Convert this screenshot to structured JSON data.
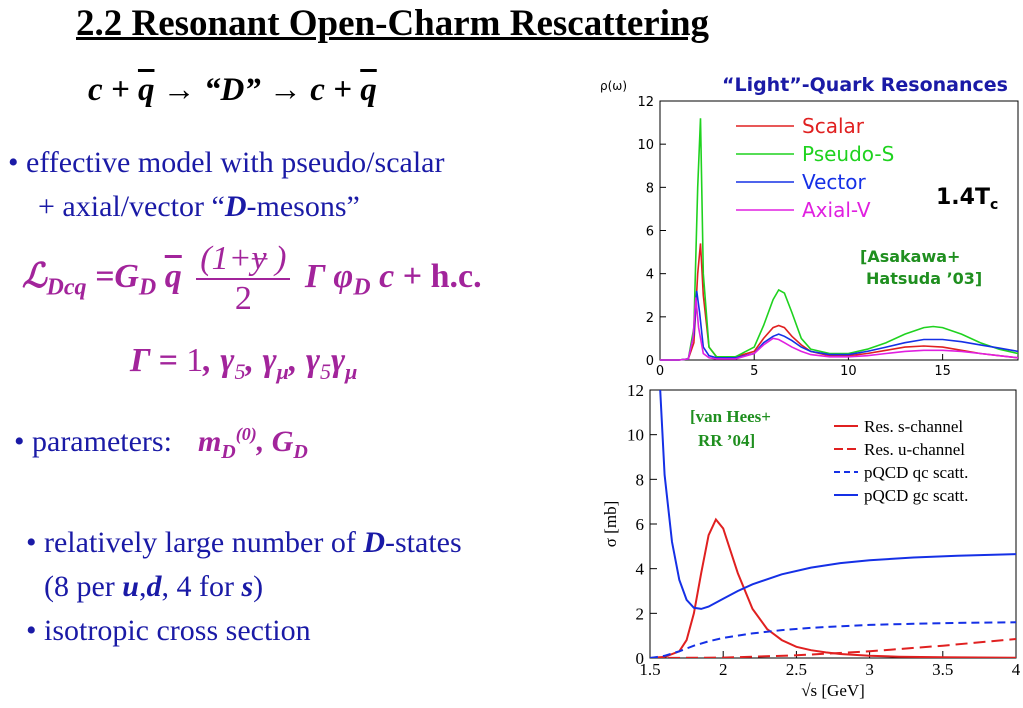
{
  "title": "2.2 Resonant Open-Charm Rescattering",
  "reaction": {
    "lhs": "c + ",
    "qbar": "q",
    "mid": " → “D” → c + ",
    "qbar2": "q"
  },
  "bullet1": {
    "line1": "•  effective model with pseudo/scalar",
    "line2_a": "+ axial/vector “",
    "line2_b": "D",
    "line2_c": "-mesons”"
  },
  "lagrangian": {
    "L": "ℒ",
    "sub": "Dcq",
    "eq": "=G",
    "gsub": "D",
    "q": "q",
    "num": "(1+ɏ )",
    "den": "2",
    "gamma": "Γ φ",
    "phisub": "D",
    "c": "c",
    "plus": "+",
    "hc": "h.c."
  },
  "gamma_line": "Γ = 1, γ₅, γ_μ, γ₅γ_μ",
  "gamma_parts": {
    "G": "Γ = ",
    "one": "1",
    "rest1": ", γ",
    "s5": "5",
    "rest2": ", γ",
    "smu": "μ",
    "rest3": ", γ",
    "s5b": "5",
    "rest4": "γ",
    "smu2": "μ"
  },
  "params": {
    "label": "• parameters:",
    "m": "m",
    "msub": "D",
    "msup": "(0)",
    "comma": ", G",
    "gsub": "D"
  },
  "bullet3": {
    "line1_a": "• relatively large number of  ",
    "line1_b": "D",
    "line1_c": "-states",
    "line2_a": "(8 per ",
    "line2_b": "u",
    "line2_c": ",",
    "line2_d": "d",
    "line2_e": ", 4 for ",
    "line2_f": "s",
    "line2_g": ")"
  },
  "bullet4": "• isotropic cross section",
  "chart_data": [
    {
      "type": "line",
      "title": "“Light”-Quark Resonances",
      "ylabel": "ρ(ω)",
      "xlim": [
        0,
        19
      ],
      "ylim": [
        0,
        12
      ],
      "xticks": [
        0,
        5,
        10,
        15
      ],
      "yticks": [
        0,
        2,
        4,
        6,
        8,
        10,
        12
      ],
      "annotation_temp": "1.4T",
      "annotation_temp_sub": "c",
      "annotation_ref": [
        "[Asakawa+",
        "Hatsuda ’03]"
      ],
      "legend": "top-right",
      "series": [
        {
          "name": "Scalar",
          "color": "#e02020",
          "x": [
            0,
            1,
            1.5,
            1.8,
            2.0,
            2.15,
            2.3,
            2.6,
            3,
            4,
            5,
            5.5,
            6,
            6.3,
            6.6,
            7,
            7.5,
            8,
            9,
            10,
            11,
            12,
            13,
            14,
            15,
            16,
            17,
            18,
            19
          ],
          "y": [
            0,
            0,
            0.05,
            0.8,
            4.0,
            5.4,
            3.0,
            0.6,
            0.15,
            0.15,
            0.4,
            1.0,
            1.5,
            1.6,
            1.5,
            1.1,
            0.7,
            0.4,
            0.2,
            0.2,
            0.3,
            0.45,
            0.6,
            0.65,
            0.6,
            0.45,
            0.3,
            0.2,
            0.1
          ]
        },
        {
          "name": "Pseudo-S",
          "color": "#1fd21f",
          "x": [
            0,
            1,
            1.5,
            1.8,
            2.0,
            2.15,
            2.3,
            2.6,
            3,
            4,
            5,
            5.5,
            6,
            6.3,
            6.6,
            7,
            7.5,
            8,
            9,
            10,
            11,
            12,
            13,
            14,
            14.5,
            15,
            16,
            17,
            18,
            19
          ],
          "y": [
            0,
            0,
            0.05,
            1.5,
            8.0,
            11.2,
            4.0,
            0.6,
            0.15,
            0.15,
            0.6,
            1.6,
            2.8,
            3.25,
            3.1,
            2.2,
            1.0,
            0.5,
            0.3,
            0.3,
            0.5,
            0.8,
            1.2,
            1.5,
            1.55,
            1.5,
            1.2,
            0.8,
            0.5,
            0.3
          ]
        },
        {
          "name": "Vector",
          "color": "#1530e6",
          "x": [
            0,
            1,
            1.5,
            1.8,
            1.95,
            2.1,
            2.3,
            2.6,
            3,
            4,
            5,
            5.5,
            6,
            6.3,
            6.6,
            7,
            7.5,
            8,
            9,
            10,
            11,
            12,
            13,
            14,
            15,
            16,
            17,
            18,
            19
          ],
          "y": [
            0,
            0,
            0.05,
            1.2,
            3.2,
            2.2,
            0.6,
            0.2,
            0.1,
            0.1,
            0.3,
            0.8,
            1.1,
            1.2,
            1.1,
            0.9,
            0.6,
            0.4,
            0.25,
            0.25,
            0.4,
            0.6,
            0.8,
            0.95,
            0.95,
            0.85,
            0.7,
            0.55,
            0.4
          ]
        },
        {
          "name": "Axial-V",
          "color": "#e020e0",
          "x": [
            0,
            1,
            1.5,
            1.75,
            1.9,
            2.05,
            2.3,
            2.6,
            3,
            4,
            5,
            5.5,
            6,
            6.3,
            6.6,
            7,
            7.5,
            8,
            9,
            10,
            11,
            12,
            13,
            14,
            15,
            16,
            17,
            18,
            19
          ],
          "y": [
            0,
            0,
            0.05,
            1.0,
            2.9,
            1.5,
            0.3,
            0.1,
            0.05,
            0.05,
            0.3,
            0.7,
            1.0,
            0.95,
            0.8,
            0.6,
            0.4,
            0.25,
            0.15,
            0.15,
            0.2,
            0.3,
            0.4,
            0.45,
            0.45,
            0.4,
            0.3,
            0.2,
            0.1
          ]
        }
      ]
    },
    {
      "type": "line",
      "xlabel": "√s [GeV]",
      "ylabel": "σ [mb]",
      "xlim": [
        1.5,
        4
      ],
      "ylim": [
        0,
        12
      ],
      "xticks": [
        1.5,
        2,
        2.5,
        3,
        3.5,
        4
      ],
      "yticks": [
        0,
        2,
        4,
        6,
        8,
        10,
        12
      ],
      "annotation_ref": [
        "[van Hees+",
        "RR ’04]"
      ],
      "legend": "top-right",
      "series": [
        {
          "name": "Res. s-channel",
          "color": "#e02020",
          "dash": "solid",
          "x": [
            1.5,
            1.6,
            1.7,
            1.75,
            1.8,
            1.85,
            1.9,
            1.95,
            2.0,
            2.05,
            2.1,
            2.2,
            2.3,
            2.4,
            2.5,
            2.6,
            2.7,
            2.8,
            3,
            3.2,
            3.5,
            4
          ],
          "y": [
            0,
            0.05,
            0.3,
            0.8,
            2.0,
            3.8,
            5.5,
            6.2,
            5.8,
            4.8,
            3.8,
            2.2,
            1.3,
            0.8,
            0.5,
            0.35,
            0.25,
            0.18,
            0.1,
            0.06,
            0.03,
            0.01
          ]
        },
        {
          "name": "Res. u-channel",
          "color": "#e02020",
          "dash": "long",
          "x": [
            1.5,
            2.0,
            2.5,
            3.0,
            3.5,
            4.0
          ],
          "y": [
            0,
            0.02,
            0.12,
            0.3,
            0.55,
            0.85
          ]
        },
        {
          "name": "pQCD qc scatt.",
          "color": "#1530e6",
          "dash": "short",
          "x": [
            1.5,
            1.6,
            1.7,
            1.8,
            1.9,
            2.0,
            2.2,
            2.4,
            2.6,
            2.8,
            3.0,
            3.3,
            3.6,
            4.0
          ],
          "y": [
            0,
            0.1,
            0.3,
            0.55,
            0.75,
            0.9,
            1.1,
            1.25,
            1.35,
            1.42,
            1.48,
            1.53,
            1.57,
            1.6
          ]
        },
        {
          "name": "pQCD gc scatt.",
          "color": "#1530e6",
          "dash": "solid",
          "x": [
            1.57,
            1.6,
            1.65,
            1.7,
            1.75,
            1.8,
            1.85,
            1.9,
            2.0,
            2.1,
            2.2,
            2.4,
            2.6,
            2.8,
            3.0,
            3.3,
            3.6,
            4.0
          ],
          "y": [
            12,
            8.2,
            5.2,
            3.5,
            2.6,
            2.25,
            2.2,
            2.3,
            2.65,
            3.0,
            3.3,
            3.75,
            4.05,
            4.25,
            4.38,
            4.5,
            4.58,
            4.65
          ]
        }
      ]
    }
  ]
}
